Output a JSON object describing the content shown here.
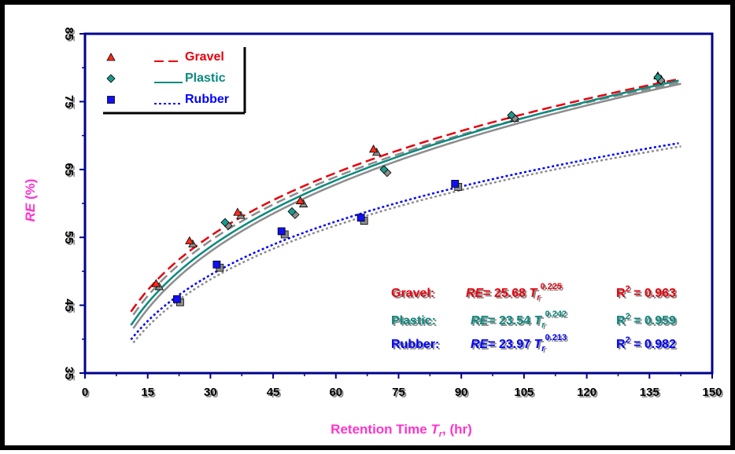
{
  "chart_data": {
    "type": "scatter",
    "x_axis": {
      "label_main": "Retention Time ",
      "label_var": "T",
      "label_sub": "r",
      "label_tail": ", (hr)",
      "range": [
        0,
        150
      ],
      "ticks": [
        "0",
        "15",
        "30",
        "45",
        "60",
        "75",
        "90",
        "105",
        "120",
        "135",
        "150"
      ]
    },
    "y_axis": {
      "label_var": "RE",
      "label_tail": " (%)",
      "range": [
        35,
        85
      ],
      "ticks": [
        "35",
        "45",
        "55",
        "65",
        "75",
        "85"
      ]
    },
    "grid": false,
    "legend_position": "top-left",
    "series": [
      {
        "name": "Gravel",
        "marker": "triangle",
        "color": "#e8000b",
        "marker_color": "#ff2a1a",
        "line_style": "dashed",
        "a": 25.68,
        "b": 0.225,
        "points": [
          [
            17,
            48.2
          ],
          [
            25,
            54.5
          ],
          [
            36.5,
            58.7
          ],
          [
            51.5,
            60.4
          ],
          [
            69,
            68
          ],
          [
            102,
            73
          ],
          [
            137,
            78.8
          ]
        ],
        "equation": {
          "label": "Gravel:",
          "lhs": "RE",
          "coef": "= 25.68 ",
          "var": "T",
          "sub": "r",
          "exp": "0.225",
          "r2_label": "R",
          "r2_exp": "2",
          "r2_value": " = 0.963"
        }
      },
      {
        "name": "Plastic",
        "marker": "diamond",
        "color": "#0a8a80",
        "marker_color": "#1a9a8a",
        "line_style": "solid",
        "a": 23.54,
        "b": 0.242,
        "points": [
          [
            33.5,
            57.2
          ],
          [
            49.5,
            58.8
          ],
          [
            71.5,
            65
          ],
          [
            102,
            73
          ],
          [
            137,
            78.6
          ]
        ],
        "equation": {
          "label": "Plastic:",
          "lhs": "RE",
          "coef": "= 23.54 ",
          "var": "T",
          "sub": "r",
          "exp": "0.242",
          "r2_label": "R",
          "r2_exp": "2",
          "r2_value": " = 0.959"
        }
      },
      {
        "name": "Rubber",
        "marker": "square",
        "color": "#0000ff",
        "marker_color": "#1010f0",
        "line_style": "dotted",
        "a": 23.97,
        "b": 0.213,
        "points": [
          [
            22,
            45.9
          ],
          [
            31.5,
            51
          ],
          [
            47,
            55.9
          ],
          [
            66,
            57.9
          ],
          [
            88.5,
            62.9
          ]
        ],
        "equation": {
          "label": "Rubber:",
          "lhs": "RE",
          "coef": "= 23.97 ",
          "var": "T",
          "sub": "r",
          "exp": "0.213",
          "r2_label": "R",
          "r2_exp": "2",
          "r2_value": " = 0.982"
        }
      }
    ],
    "colors": {
      "axis_label": "#ff33cc",
      "tick_label": "#000000",
      "plot_border": "#00008b",
      "outer_border": "#000000",
      "shadow": "#8c8c8c"
    }
  }
}
